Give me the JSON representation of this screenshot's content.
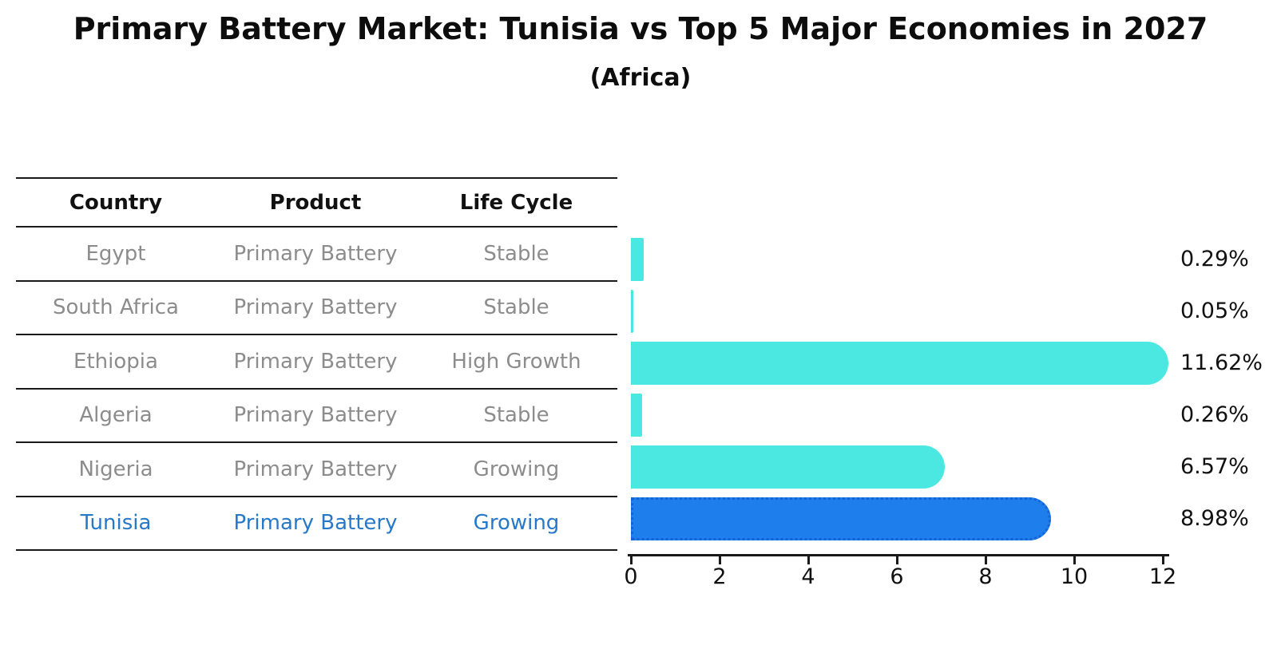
{
  "title": "Primary Battery Market: Tunisia vs Top 5 Major Economies in 2027",
  "subtitle": "(Africa)",
  "table": {
    "headers": [
      "Country",
      "Product",
      "Life Cycle"
    ],
    "rows": [
      {
        "country": "Egypt",
        "product": "Primary Battery",
        "life_cycle": "Stable",
        "highlight": false
      },
      {
        "country": "South Africa",
        "product": "Primary Battery",
        "life_cycle": "Stable",
        "highlight": false
      },
      {
        "country": "Ethiopia",
        "product": "Primary Battery",
        "life_cycle": "High Growth",
        "highlight": false
      },
      {
        "country": "Algeria",
        "product": "Primary Battery",
        "life_cycle": "Stable",
        "highlight": false
      },
      {
        "country": "Nigeria",
        "product": "Primary Battery",
        "life_cycle": "Growing",
        "highlight": false
      },
      {
        "country": "Tunisia",
        "product": "Primary Battery",
        "life_cycle": "Growing",
        "highlight": true
      }
    ]
  },
  "chart_data": {
    "type": "bar",
    "orientation": "horizontal",
    "title": "Primary Battery Market: Tunisia vs Top 5 Major Economies in 2027",
    "subtitle": "(Africa)",
    "categories": [
      "Egypt",
      "South Africa",
      "Ethiopia",
      "Algeria",
      "Nigeria",
      "Tunisia"
    ],
    "values": [
      0.29,
      0.05,
      11.62,
      0.26,
      6.57,
      8.98
    ],
    "value_labels": [
      "0.29%",
      "0.05%",
      "11.62%",
      "0.26%",
      "6.57%",
      "8.98%"
    ],
    "xlabel": "",
    "ylabel": "",
    "xlim": [
      0,
      12
    ],
    "x_ticks": [
      0,
      2,
      4,
      6,
      8,
      10,
      12
    ],
    "grid": false,
    "legend": false,
    "highlight_category": "Tunisia",
    "colors": {
      "bar": "#4BE8E2",
      "highlight_bar": "#1E7EEB",
      "highlight_border": "#1564D6",
      "highlight_text": "#2878C8",
      "table_text": "#8C8C8C",
      "header_text": "#111111",
      "axis": "#1A1A1A",
      "value_label": "#111111"
    }
  }
}
